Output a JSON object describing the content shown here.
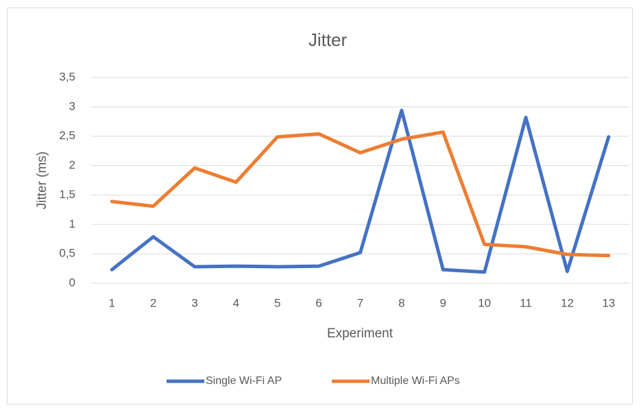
{
  "chart_data": {
    "type": "line",
    "title": "Jitter",
    "x_label": "Experiment",
    "y_label": "Jitter (ms)",
    "categories": [
      "1",
      "2",
      "3",
      "4",
      "5",
      "6",
      "7",
      "8",
      "9",
      "10",
      "11",
      "12",
      "13"
    ],
    "series": [
      {
        "name": "Single Wi-Fi AP",
        "color": "#4472c4",
        "values": [
          0.23,
          0.79,
          0.28,
          0.29,
          0.28,
          0.29,
          0.52,
          2.94,
          0.23,
          0.19,
          2.82,
          0.2,
          2.49
        ]
      },
      {
        "name": "Multiple Wi-Fi APs",
        "color": "#ed7d31",
        "values": [
          1.39,
          1.31,
          1.96,
          1.72,
          2.49,
          2.54,
          2.22,
          2.45,
          2.57,
          0.66,
          0.62,
          0.49,
          0.47
        ]
      }
    ],
    "ylim": [
      0,
      3.5
    ],
    "yticks": [
      0,
      {
        "value": 0.5,
        "label": "0,5"
      },
      1,
      {
        "value": 1.5,
        "label": "1,5"
      },
      2,
      {
        "value": 2.5,
        "label": "2,5"
      },
      3,
      {
        "value": 3.5,
        "label": "3,5"
      }
    ],
    "grid": true,
    "legend": "bottom"
  }
}
